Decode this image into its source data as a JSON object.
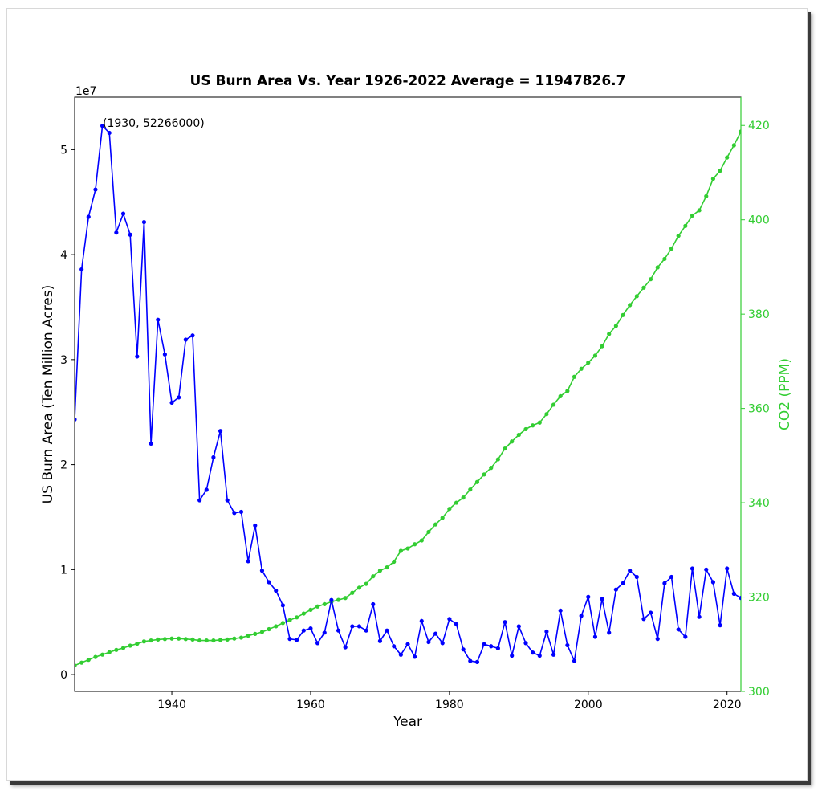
{
  "chart_data": {
    "type": "line",
    "title": "US Burn Area Vs. Year 1926-2022 Average = 11947826.7",
    "xlabel": "Year",
    "ylabel": "US Burn Area (Ten Million Acres)",
    "y2label": "CO2 (PPM)",
    "offset_label": "1e7",
    "annotation": "(1930, 52266000)",
    "xlim": [
      1926,
      2022
    ],
    "ylim": [
      -0.16,
      5.5
    ],
    "y2lim": [
      300,
      426
    ],
    "x_ticks": [
      1940,
      1960,
      1980,
      2000,
      2020
    ],
    "y_ticks": [
      0,
      1,
      2,
      3,
      4,
      5
    ],
    "y2_ticks": [
      300,
      320,
      340,
      360,
      380,
      400,
      420
    ],
    "grid": false,
    "colors": {
      "burn": "#0000ff",
      "co2": "#32cd32",
      "right_axis": "#32cd32"
    },
    "series": [
      {
        "axis": "left",
        "units": "1e7 acres",
        "x": [
          1926,
          1927,
          1928,
          1929,
          1930,
          1931,
          1932,
          1933,
          1934,
          1935,
          1936,
          1937,
          1938,
          1939,
          1940,
          1941,
          1942,
          1943,
          1944,
          1945,
          1946,
          1947,
          1948,
          1949,
          1950,
          1951,
          1952,
          1953,
          1954,
          1955,
          1956,
          1957,
          1958,
          1959,
          1960,
          1961,
          1962,
          1963,
          1964,
          1965,
          1966,
          1967,
          1968,
          1969,
          1970,
          1971,
          1972,
          1973,
          1974,
          1975,
          1976,
          1977,
          1978,
          1979,
          1980,
          1981,
          1982,
          1983,
          1984,
          1985,
          1986,
          1987,
          1988,
          1989,
          1990,
          1991,
          1992,
          1993,
          1994,
          1995,
          1996,
          1997,
          1998,
          1999,
          2000,
          2001,
          2002,
          2003,
          2004,
          2005,
          2006,
          2007,
          2008,
          2009,
          2010,
          2011,
          2012,
          2013,
          2014,
          2015,
          2016,
          2017,
          2018,
          2019,
          2020,
          2021,
          2022
        ],
        "values": [
          2.43,
          3.86,
          4.36,
          4.62,
          5.2266,
          5.16,
          4.21,
          4.39,
          4.19,
          3.03,
          4.31,
          2.2,
          3.38,
          3.05,
          2.59,
          2.64,
          3.19,
          3.23,
          1.66,
          1.76,
          2.07,
          2.32,
          1.66,
          1.54,
          1.55,
          1.08,
          1.42,
          0.99,
          0.88,
          0.8,
          0.66,
          0.34,
          0.33,
          0.42,
          0.44,
          0.3,
          0.4,
          0.71,
          0.42,
          0.26,
          0.46,
          0.46,
          0.42,
          0.67,
          0.32,
          0.42,
          0.27,
          0.19,
          0.29,
          0.17,
          0.51,
          0.31,
          0.39,
          0.3,
          0.53,
          0.48,
          0.24,
          0.13,
          0.12,
          0.29,
          0.27,
          0.25,
          0.5,
          0.18,
          0.46,
          0.3,
          0.21,
          0.18,
          0.41,
          0.19,
          0.61,
          0.28,
          0.13,
          0.56,
          0.74,
          0.36,
          0.72,
          0.4,
          0.81,
          0.87,
          0.99,
          0.93,
          0.53,
          0.59,
          0.34,
          0.87,
          0.93,
          0.43,
          0.36,
          1.01,
          0.55,
          1.0,
          0.88,
          0.47,
          1.01,
          0.77,
          0.73
        ]
      },
      {
        "axis": "right",
        "units": "ppm",
        "x": [
          1926,
          1927,
          1928,
          1929,
          1930,
          1931,
          1932,
          1933,
          1934,
          1935,
          1936,
          1937,
          1938,
          1939,
          1940,
          1941,
          1942,
          1943,
          1944,
          1945,
          1946,
          1947,
          1948,
          1949,
          1950,
          1951,
          1952,
          1953,
          1954,
          1955,
          1956,
          1957,
          1958,
          1959,
          1960,
          1961,
          1962,
          1963,
          1964,
          1965,
          1966,
          1967,
          1968,
          1969,
          1970,
          1971,
          1972,
          1973,
          1974,
          1975,
          1976,
          1977,
          1978,
          1979,
          1980,
          1981,
          1982,
          1983,
          1984,
          1985,
          1986,
          1987,
          1988,
          1989,
          1990,
          1991,
          1992,
          1993,
          1994,
          1995,
          1996,
          1997,
          1998,
          1999,
          2000,
          2001,
          2002,
          2003,
          2004,
          2005,
          2006,
          2007,
          2008,
          2009,
          2010,
          2011,
          2012,
          2013,
          2014,
          2015,
          2016,
          2017,
          2018,
          2019,
          2020,
          2021,
          2022
        ],
        "values": [
          305.5,
          306.1,
          306.7,
          307.3,
          307.8,
          308.3,
          308.8,
          309.2,
          309.7,
          310.1,
          310.6,
          310.8,
          311.0,
          311.1,
          311.2,
          311.2,
          311.1,
          311.0,
          310.8,
          310.8,
          310.8,
          310.9,
          311.0,
          311.2,
          311.4,
          311.8,
          312.2,
          312.6,
          313.2,
          313.8,
          314.5,
          315.1,
          315.7,
          316.5,
          317.3,
          318.0,
          318.5,
          319.0,
          319.4,
          319.8,
          320.9,
          322.0,
          322.8,
          324.4,
          325.6,
          326.3,
          327.5,
          329.8,
          330.3,
          331.2,
          332.0,
          333.8,
          335.4,
          336.8,
          338.7,
          340.0,
          341.1,
          342.8,
          344.4,
          346.0,
          347.4,
          349.2,
          351.5,
          353.0,
          354.4,
          355.6,
          356.4,
          357.0,
          358.8,
          360.8,
          362.6,
          363.7,
          366.7,
          368.4,
          369.7,
          371.2,
          373.2,
          375.8,
          377.5,
          379.8,
          381.9,
          383.8,
          385.6,
          387.4,
          389.9,
          391.7,
          393.9,
          396.6,
          398.7,
          400.9,
          402.0,
          405.0,
          408.7,
          410.4,
          413.2,
          415.8,
          418.7
        ]
      }
    ]
  }
}
